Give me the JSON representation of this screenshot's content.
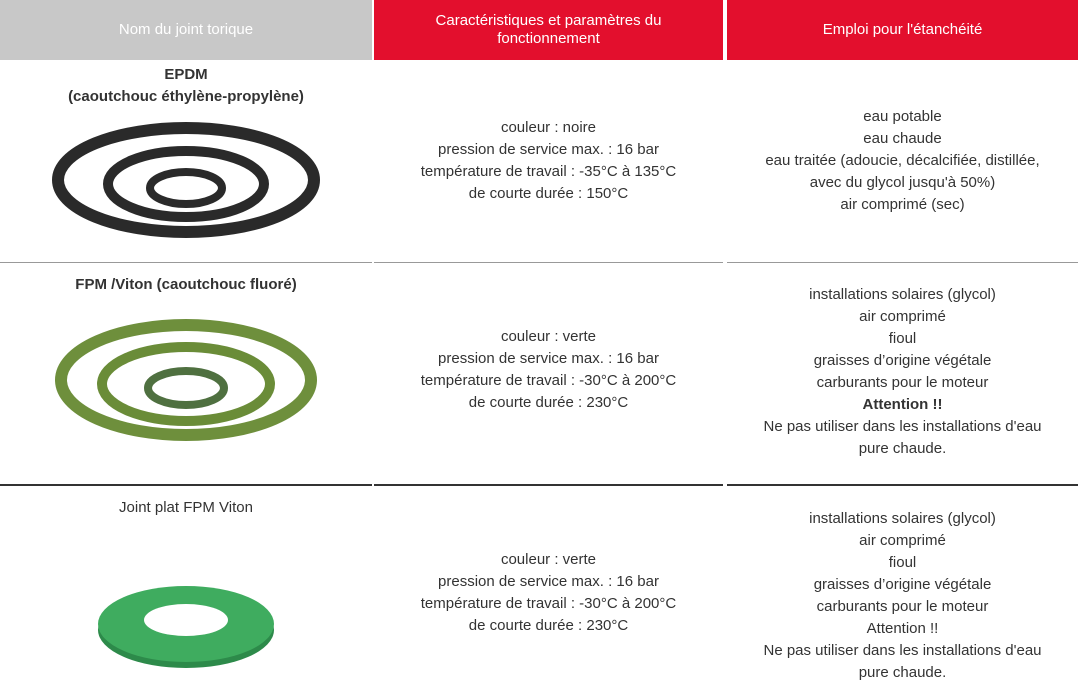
{
  "header": {
    "columns": [
      "Nom du joint torique",
      "Caractéristiques et paramètres du fonctionnement",
      "Emploi pour l'étanchéité"
    ]
  },
  "rows": [
    {
      "name": [
        "EPDM",
        "(caoutchouc éthylène-propylène)"
      ],
      "characteristics": [
        "couleur : noire",
        "pression de service max. : 16 bar",
        "température de travail : -35°C à 135°C",
        "de courte durée : 150°C"
      ],
      "usage": [
        "eau potable",
        "eau chaude",
        "eau traitée (adoucie, décalcifiée, distillée,",
        "avec du glycol jusqu'à 50%)",
        "air comprimé (sec)"
      ]
    },
    {
      "name": [
        "FPM /Viton (caoutchouc fluoré)"
      ],
      "characteristics": [
        "couleur : verte",
        "pression de service max. : 16 bar",
        "température de travail : -30°C à 200°C",
        "de courte durée : 230°C"
      ],
      "usage": [
        "installations solaires (glycol)",
        "air comprimé",
        "fioul",
        "graisses d’origine végétale",
        "carburants pour le moteur",
        "Attention !!",
        "Ne pas utiliser dans les installations d'eau",
        "pure chaude."
      ]
    },
    {
      "name": [
        "Joint plat FPM Viton"
      ],
      "characteristics": [
        "couleur : verte",
        "pression de service max. : 16 bar",
        "température de travail : -30°C à 200°C",
        "de courte durée : 230°C"
      ],
      "usage": [
        "installations solaires (glycol)",
        "air comprimé",
        "fioul",
        "graisses d’origine végétale",
        "carburants pour le moteur",
        "Attention !!",
        "Ne pas utiliser dans les installations d'eau",
        "pure chaude."
      ]
    }
  ]
}
